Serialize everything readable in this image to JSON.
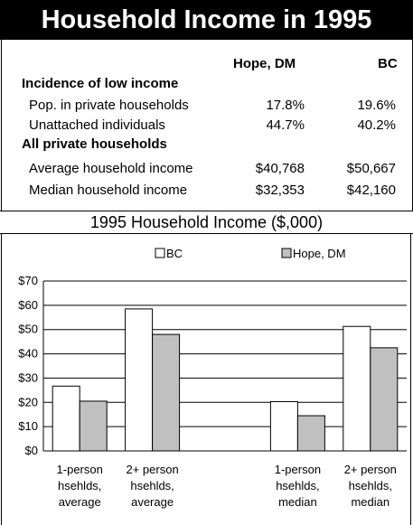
{
  "title": "Household Income in 1995",
  "table": {
    "columns": [
      "Hope, DM",
      "BC"
    ],
    "sections": [
      {
        "heading": "Incidence of low income",
        "rows": [
          {
            "label": "Pop. in private households",
            "values": [
              "17.8%",
              "19.6%"
            ]
          },
          {
            "label": "Unattached individuals",
            "values": [
              "44.7%",
              "40.2%"
            ]
          }
        ]
      },
      {
        "heading": "All private households",
        "rows": [
          {
            "label": "Average household income",
            "values": [
              "$40,768",
              "$50,667"
            ]
          },
          {
            "label": "Median household income",
            "values": [
              "$32,353",
              "$42,160"
            ]
          }
        ]
      }
    ]
  },
  "chart_data": {
    "type": "bar",
    "title": "1995 Household Income ($,000)",
    "categories": [
      [
        "1-person",
        "hsehlds,",
        "average"
      ],
      [
        "2+ person",
        "hsehlds,",
        "average"
      ],
      [
        "",
        "",
        ""
      ],
      [
        "1-person",
        "hsehlds,",
        "median"
      ],
      [
        "2+ person",
        "hsehlds,",
        "median"
      ]
    ],
    "series": [
      {
        "name": "BC",
        "values": [
          26.7,
          58.5,
          null,
          20.3,
          51.3
        ],
        "color": "#ffffff"
      },
      {
        "name": "Hope, DM",
        "values": [
          20.5,
          48.0,
          null,
          14.5,
          42.5
        ],
        "color": "#c0c0c0"
      }
    ],
    "ylim": [
      0,
      70
    ],
    "yticks": [
      "$0",
      "$10",
      "$20",
      "$30",
      "$40",
      "$50",
      "$60",
      "$70"
    ],
    "grid": true,
    "legend": "top"
  }
}
